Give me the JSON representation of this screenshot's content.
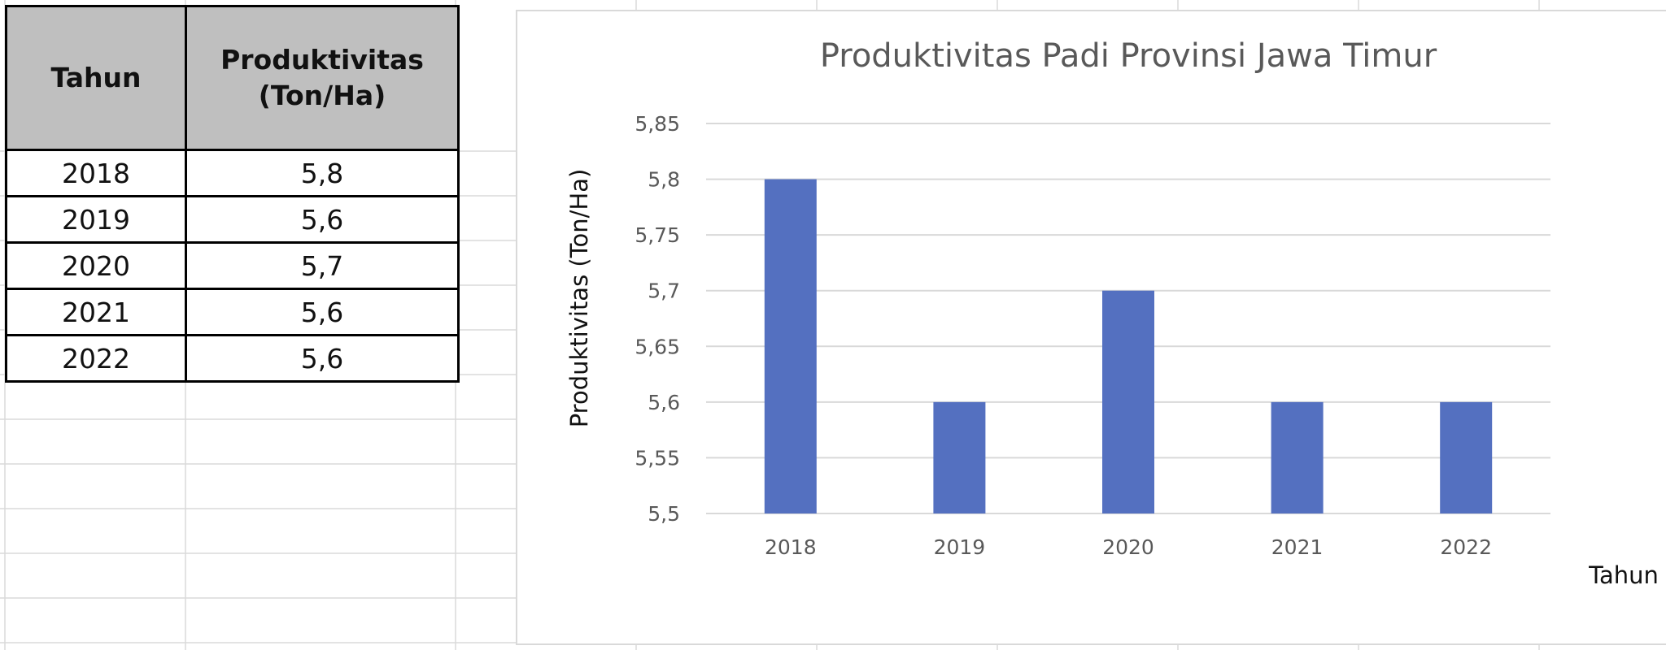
{
  "table": {
    "headers": {
      "year": "Tahun",
      "productivity_line1": "Produktivitas",
      "productivity_line2": "(Ton/Ha)"
    },
    "rows": [
      {
        "year": "2018",
        "value": "5,8"
      },
      {
        "year": "2019",
        "value": "5,6"
      },
      {
        "year": "2020",
        "value": "5,7"
      },
      {
        "year": "2021",
        "value": "5,6"
      },
      {
        "year": "2022",
        "value": "5,6"
      }
    ]
  },
  "chart_data": {
    "type": "bar",
    "title": "Produktivitas Padi Provinsi Jawa Timur",
    "xlabel": "Tahun",
    "ylabel": "Produktivitas (Ton/Ha)",
    "categories": [
      "2018",
      "2019",
      "2020",
      "2021",
      "2022"
    ],
    "values": [
      5.8,
      5.6,
      5.7,
      5.6,
      5.6
    ],
    "ylim": [
      5.5,
      5.85
    ],
    "yticks": [
      "5,5",
      "5,55",
      "5,6",
      "5,65",
      "5,7",
      "5,75",
      "5,8",
      "5,85"
    ],
    "grid": true,
    "legend": "none",
    "bar_color": "#5470c0",
    "grid_color": "#d9d9d9"
  }
}
